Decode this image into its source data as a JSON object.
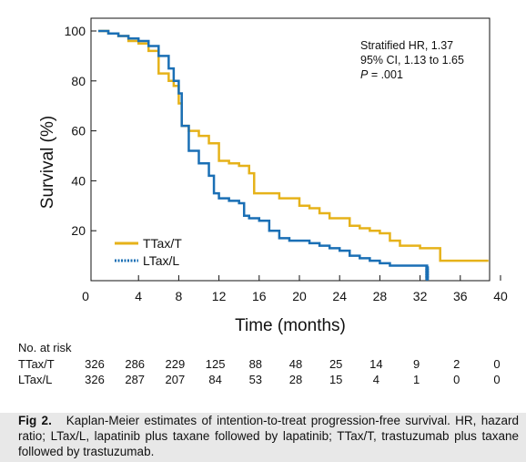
{
  "chart_data": {
    "type": "line",
    "subtype": "kaplan-meier step curves",
    "xlabel": "Time (months)",
    "ylabel": "Survival (%)",
    "xlim": [
      0,
      40
    ],
    "ylim": [
      0,
      100
    ],
    "x_ticks": [
      "0",
      "4",
      "8",
      "12",
      "16",
      "20",
      "24",
      "28",
      "32",
      "36",
      "40"
    ],
    "y_ticks": [
      "20",
      "40",
      "60",
      "80",
      "100"
    ],
    "grid": false,
    "legend_position": "bottom-left",
    "annotation": [
      "Stratified HR, 1.37",
      "95% CI, 1.13 to 1.65",
      "P = .001"
    ],
    "series": [
      {
        "name": "TTax/T",
        "color": "#e6b21a",
        "points": [
          [
            0,
            100
          ],
          [
            1,
            99
          ],
          [
            2,
            98
          ],
          [
            3,
            96
          ],
          [
            4,
            95
          ],
          [
            5,
            92
          ],
          [
            6,
            83
          ],
          [
            7,
            80
          ],
          [
            7.5,
            78
          ],
          [
            8,
            71
          ],
          [
            8.3,
            62
          ],
          [
            9,
            60
          ],
          [
            10,
            58
          ],
          [
            11,
            55
          ],
          [
            12,
            48
          ],
          [
            13,
            47
          ],
          [
            14,
            46
          ],
          [
            15,
            43
          ],
          [
            15.5,
            35
          ],
          [
            16,
            35
          ],
          [
            18,
            33
          ],
          [
            20,
            30
          ],
          [
            21,
            29
          ],
          [
            22,
            27
          ],
          [
            23,
            25
          ],
          [
            25,
            22
          ],
          [
            26,
            21
          ],
          [
            27,
            20
          ],
          [
            28,
            19
          ],
          [
            29,
            16
          ],
          [
            30,
            14
          ],
          [
            32,
            13
          ],
          [
            33,
            13
          ],
          [
            34,
            8
          ],
          [
            38.8,
            8
          ]
        ],
        "censor_marks": []
      },
      {
        "name": "LTax/L",
        "color": "#1a6fb5",
        "points": [
          [
            0,
            100
          ],
          [
            1,
            99
          ],
          [
            2,
            98
          ],
          [
            3,
            97
          ],
          [
            4,
            96
          ],
          [
            5,
            94
          ],
          [
            6,
            90
          ],
          [
            7,
            85
          ],
          [
            7.5,
            80
          ],
          [
            8,
            75
          ],
          [
            8.3,
            62
          ],
          [
            9,
            52
          ],
          [
            10,
            47
          ],
          [
            11,
            42
          ],
          [
            11.5,
            35
          ],
          [
            12,
            33
          ],
          [
            13,
            32
          ],
          [
            14,
            31
          ],
          [
            14.5,
            26
          ],
          [
            15,
            25
          ],
          [
            16,
            24
          ],
          [
            17,
            20
          ],
          [
            18,
            17
          ],
          [
            19,
            16
          ],
          [
            20,
            16
          ],
          [
            21,
            15
          ],
          [
            22,
            14
          ],
          [
            23,
            13
          ],
          [
            24,
            12
          ],
          [
            25,
            10
          ],
          [
            26,
            9
          ],
          [
            27,
            8
          ],
          [
            28,
            7
          ],
          [
            29,
            6
          ],
          [
            30,
            6
          ],
          [
            31,
            6
          ],
          [
            32.5,
            6
          ],
          [
            32.7,
            0
          ]
        ],
        "censor_marks": [
          [
            32.7,
            1
          ],
          [
            32.7,
            2
          ],
          [
            32.7,
            3
          ],
          [
            32.7,
            4
          ],
          [
            32.7,
            5
          ]
        ]
      }
    ],
    "risk_table": {
      "title": "No. at risk",
      "times": [
        0,
        4,
        8,
        12,
        16,
        20,
        24,
        28,
        32,
        36,
        40
      ],
      "rows": [
        {
          "label": "TTax/T",
          "values": [
            "326",
            "286",
            "229",
            "125",
            "88",
            "48",
            "25",
            "14",
            "9",
            "2",
            "0"
          ]
        },
        {
          "label": "LTax/L",
          "values": [
            "326",
            "287",
            "207",
            "84",
            "53",
            "28",
            "15",
            "4",
            "1",
            "0",
            "0"
          ]
        }
      ]
    }
  },
  "caption": {
    "label": "Fig 2.",
    "text": "Kaplan-Meier estimates of intention-to-treat progression-free survival. HR, hazard ratio; LTax/L, lapatinib plus taxane followed by lapatinib; TTax/T, trastuzumab plus taxane followed by trastuzumab."
  }
}
